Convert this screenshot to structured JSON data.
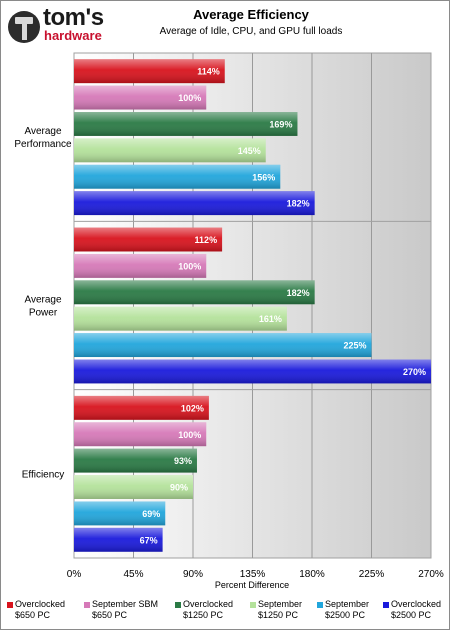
{
  "logo": {
    "name": "tom's",
    "sub": "hardware"
  },
  "chart_data": {
    "type": "bar",
    "orientation": "horizontal",
    "title": "Average Efficiency",
    "subtitle": "Average of Idle, CPU, and GPU full loads",
    "xlabel": "Percent Difference",
    "ylabel": "",
    "xlim": [
      0,
      270
    ],
    "xticks": [
      "0%",
      "45%",
      "90%",
      "135%",
      "180%",
      "225%",
      "270%"
    ],
    "grid": true,
    "legend_position": "bottom",
    "categories": [
      {
        "label_lines": [
          "Average",
          "Performance"
        ]
      },
      {
        "label_lines": [
          "Average",
          "Power"
        ]
      },
      {
        "label_lines": [
          "Efficiency"
        ]
      }
    ],
    "series": [
      {
        "name_lines": [
          "Overclocked",
          "$650 PC"
        ],
        "color": "#d8131d",
        "values": [
          114,
          112,
          102
        ],
        "labels": [
          "114%",
          "112%",
          "102%"
        ]
      },
      {
        "name_lines": [
          "September SBM",
          "$650 PC"
        ],
        "color": "#d679b8",
        "values": [
          100,
          100,
          100
        ],
        "labels": [
          "100%",
          "100%",
          "100%"
        ]
      },
      {
        "name_lines": [
          "Overclocked",
          "$1250 PC"
        ],
        "color": "#2a7a45",
        "values": [
          169,
          182,
          93
        ],
        "labels": [
          "169%",
          "182%",
          "93%"
        ]
      },
      {
        "name_lines": [
          "September",
          "$1250 PC"
        ],
        "color": "#b4e29b",
        "values": [
          145,
          161,
          90
        ],
        "labels": [
          "145%",
          "161%",
          "90%"
        ]
      },
      {
        "name_lines": [
          "September",
          "$2500 PC"
        ],
        "color": "#21a6dc",
        "values": [
          156,
          225,
          69
        ],
        "labels": [
          "156%",
          "225%",
          "69%"
        ]
      },
      {
        "name_lines": [
          "Overclocked",
          "$2500 PC"
        ],
        "color": "#1a1adc",
        "values": [
          182,
          270,
          67
        ],
        "labels": [
          "182%",
          "270%",
          "67%"
        ]
      }
    ]
  }
}
